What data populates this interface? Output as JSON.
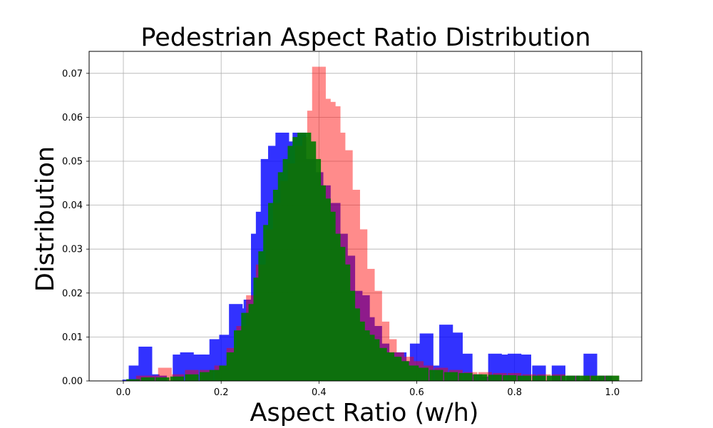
{
  "chart_data": {
    "type": "bar",
    "title": "Pedestrian Aspect Ratio Distribution",
    "xlabel": "Aspect Ratio (w/h)",
    "ylabel": "Distribution",
    "xlim": [
      -0.07,
      1.06
    ],
    "ylim": [
      0,
      0.075
    ],
    "xticks": [
      "0.0",
      "0.2",
      "0.4",
      "0.6",
      "0.8",
      "1.0"
    ],
    "yticks": [
      "0.00",
      "0.01",
      "0.02",
      "0.03",
      "0.04",
      "0.05",
      "0.06",
      "0.07"
    ],
    "grid": true,
    "legend": "none",
    "series": [
      {
        "color": "#0000ff",
        "opacity": 0.8,
        "bars": [
          [
            0.012,
            0.0003
          ],
          [
            0.025,
            0.0035
          ],
          [
            0.045,
            0.0078
          ],
          [
            0.06,
            0.0015
          ],
          [
            0.075,
            0.0012
          ],
          [
            0.115,
            0.006
          ],
          [
            0.13,
            0.0065
          ],
          [
            0.155,
            0.006
          ],
          [
            0.17,
            0.006
          ],
          [
            0.19,
            0.0095
          ],
          [
            0.21,
            0.0105
          ],
          [
            0.23,
            0.0175
          ],
          [
            0.245,
            0.0165
          ],
          [
            0.26,
            0.0185
          ],
          [
            0.275,
            0.0335
          ],
          [
            0.285,
            0.0385
          ],
          [
            0.295,
            0.0505
          ],
          [
            0.31,
            0.0535
          ],
          [
            0.325,
            0.0565
          ],
          [
            0.34,
            0.0545
          ],
          [
            0.36,
            0.0565
          ],
          [
            0.38,
            0.0505
          ],
          [
            0.395,
            0.0475
          ],
          [
            0.41,
            0.0445
          ],
          [
            0.43,
            0.0405
          ],
          [
            0.445,
            0.0335
          ],
          [
            0.46,
            0.0285
          ],
          [
            0.475,
            0.0205
          ],
          [
            0.49,
            0.0195
          ],
          [
            0.5,
            0.0145
          ],
          [
            0.515,
            0.0125
          ],
          [
            0.53,
            0.0085
          ],
          [
            0.545,
            0.0065
          ],
          [
            0.565,
            0.0065
          ],
          [
            0.585,
            0.0045
          ],
          [
            0.6,
            0.0085
          ],
          [
            0.62,
            0.0108
          ],
          [
            0.64,
            0.0035
          ],
          [
            0.66,
            0.0128
          ],
          [
            0.68,
            0.011
          ],
          [
            0.7,
            0.0062
          ],
          [
            0.72,
            0.0015
          ],
          [
            0.74,
            0.001
          ],
          [
            0.76,
            0.0062
          ],
          [
            0.78,
            0.006
          ],
          [
            0.8,
            0.0062
          ],
          [
            0.82,
            0.006
          ],
          [
            0.85,
            0.0035
          ],
          [
            0.89,
            0.0035
          ],
          [
            0.92,
            0.0012
          ],
          [
            0.955,
            0.0062
          ],
          [
            0.985,
            0.0012
          ]
        ]
      },
      {
        "color": "#ff0000",
        "opacity": 0.45,
        "bars": [
          [
            0.04,
            0.0012
          ],
          [
            0.065,
            0.0012
          ],
          [
            0.085,
            0.003
          ],
          [
            0.11,
            0.0015
          ],
          [
            0.14,
            0.0025
          ],
          [
            0.17,
            0.0025
          ],
          [
            0.2,
            0.0035
          ],
          [
            0.225,
            0.0075
          ],
          [
            0.245,
            0.0125
          ],
          [
            0.265,
            0.0195
          ],
          [
            0.285,
            0.0265
          ],
          [
            0.305,
            0.0345
          ],
          [
            0.32,
            0.0405
          ],
          [
            0.335,
            0.0455
          ],
          [
            0.35,
            0.0495
          ],
          [
            0.365,
            0.0535
          ],
          [
            0.38,
            0.0555
          ],
          [
            0.39,
            0.0615
          ],
          [
            0.4,
            0.0715
          ],
          [
            0.41,
            0.0642
          ],
          [
            0.42,
            0.0635
          ],
          [
            0.43,
            0.0625
          ],
          [
            0.44,
            0.0565
          ],
          [
            0.455,
            0.0525
          ],
          [
            0.47,
            0.0435
          ],
          [
            0.485,
            0.0345
          ],
          [
            0.5,
            0.0255
          ],
          [
            0.515,
            0.0205
          ],
          [
            0.53,
            0.0135
          ],
          [
            0.545,
            0.0095
          ],
          [
            0.56,
            0.0065
          ],
          [
            0.58,
            0.0055
          ],
          [
            0.6,
            0.0045
          ],
          [
            0.62,
            0.0035
          ],
          [
            0.65,
            0.003
          ],
          [
            0.68,
            0.0025
          ],
          [
            0.71,
            0.002
          ],
          [
            0.74,
            0.002
          ],
          [
            0.77,
            0.0018
          ],
          [
            0.8,
            0.0018
          ],
          [
            0.83,
            0.0015
          ],
          [
            0.86,
            0.0015
          ],
          [
            0.89,
            0.0015
          ],
          [
            0.92,
            0.0012
          ],
          [
            0.95,
            0.0012
          ],
          [
            0.98,
            0.0012
          ],
          [
            1.0,
            0.0012
          ]
        ]
      },
      {
        "color": "#007a00",
        "opacity": 0.9,
        "bars": [
          [
            0.02,
            0.0004
          ],
          [
            0.05,
            0.0008
          ],
          [
            0.08,
            0.0008
          ],
          [
            0.11,
            0.001
          ],
          [
            0.14,
            0.0015
          ],
          [
            0.17,
            0.002
          ],
          [
            0.19,
            0.0025
          ],
          [
            0.21,
            0.0035
          ],
          [
            0.225,
            0.0065
          ],
          [
            0.24,
            0.0115
          ],
          [
            0.255,
            0.0155
          ],
          [
            0.27,
            0.0175
          ],
          [
            0.28,
            0.0235
          ],
          [
            0.29,
            0.0295
          ],
          [
            0.3,
            0.0355
          ],
          [
            0.31,
            0.0405
          ],
          [
            0.32,
            0.0435
          ],
          [
            0.33,
            0.0475
          ],
          [
            0.34,
            0.0505
          ],
          [
            0.35,
            0.0535
          ],
          [
            0.36,
            0.0555
          ],
          [
            0.37,
            0.0565
          ],
          [
            0.38,
            0.0545
          ],
          [
            0.39,
            0.0505
          ],
          [
            0.4,
            0.0445
          ],
          [
            0.41,
            0.0415
          ],
          [
            0.42,
            0.0385
          ],
          [
            0.43,
            0.0335
          ],
          [
            0.44,
            0.0305
          ],
          [
            0.45,
            0.0265
          ],
          [
            0.46,
            0.0205
          ],
          [
            0.47,
            0.0165
          ],
          [
            0.48,
            0.0135
          ],
          [
            0.49,
            0.0115
          ],
          [
            0.5,
            0.0105
          ],
          [
            0.51,
            0.0095
          ],
          [
            0.525,
            0.0075
          ],
          [
            0.54,
            0.0065
          ],
          [
            0.555,
            0.0055
          ],
          [
            0.57,
            0.0045
          ],
          [
            0.59,
            0.0035
          ],
          [
            0.61,
            0.003
          ],
          [
            0.64,
            0.0025
          ],
          [
            0.67,
            0.002
          ],
          [
            0.7,
            0.0018
          ],
          [
            0.73,
            0.0015
          ],
          [
            0.76,
            0.0014
          ],
          [
            0.79,
            0.0013
          ],
          [
            0.82,
            0.0012
          ],
          [
            0.85,
            0.0012
          ],
          [
            0.88,
            0.0012
          ],
          [
            0.91,
            0.0012
          ],
          [
            0.94,
            0.0012
          ],
          [
            0.97,
            0.0012
          ],
          [
            1.0,
            0.0012
          ]
        ]
      }
    ]
  }
}
